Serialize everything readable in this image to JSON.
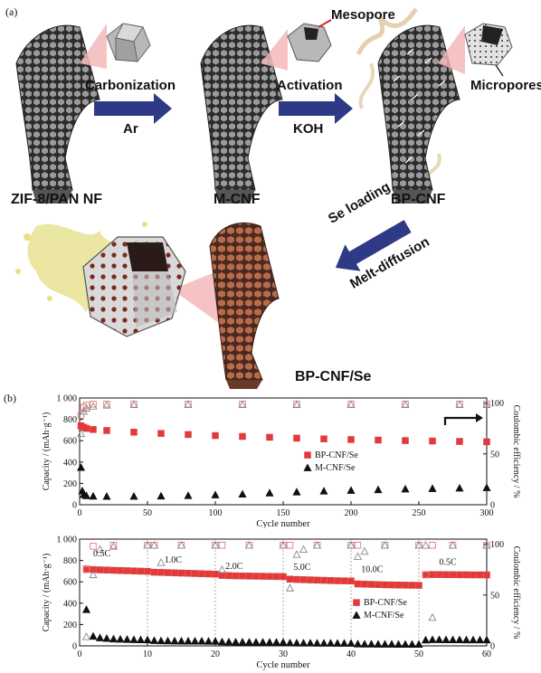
{
  "panel_a": {
    "tag": "(a)",
    "labels": {
      "mesopore": "Mesopore",
      "micropores": "Micropores",
      "stage1": "ZIF-8/PAN NF",
      "stage2": "M-CNF",
      "stage3": "BP-CNF",
      "stage4": "BP-CNF/Se"
    },
    "arrows": {
      "a1_top": "Carbonization",
      "a1_bottom": "Ar",
      "a2_top": "Activation",
      "a2_bottom": "KOH",
      "a3_top": "Se loading",
      "a3_bottom": "Melt-diffusion"
    },
    "colors": {
      "arrow": "#2f3a86",
      "fiber_dark": "#3a3a3a",
      "fiber_se": "#8a5038",
      "zoom_pink": "#f3b8b8",
      "se_liquid": "#e6e08a"
    }
  },
  "panel_b": {
    "tag": "(b)",
    "chart_data": [
      {
        "type": "scatter",
        "xlabel": "Cycle number",
        "ylabel_left": "Capacity / (mAh·g⁻¹)",
        "ylabel_right": "Coulombic efficiency / %",
        "xlim": [
          0,
          300
        ],
        "ylim_left": [
          0,
          1000
        ],
        "ylim_right": [
          0,
          105
        ],
        "xticks": [
          "0",
          "50",
          "100",
          "150",
          "200",
          "250",
          "300"
        ],
        "yticks_left": [
          "0",
          "200",
          "400",
          "600",
          "800",
          "1 000"
        ],
        "yticks_right": [
          "0",
          "50",
          "100"
        ],
        "legend": [
          "BP-CNF/Se",
          "M-CNF/Se"
        ],
        "legend_position": "right-middle",
        "series": [
          {
            "name": "BP-CNF/Se",
            "axis": "left",
            "marker": "square-filled",
            "color": "#e23a3a",
            "x": [
              1,
              3,
              5,
              10,
              20,
              40,
              60,
              80,
              100,
              120,
              140,
              160,
              180,
              200,
              220,
              240,
              260,
              280,
              300
            ],
            "y": [
              740,
              725,
              715,
              705,
              695,
              680,
              668,
              658,
              648,
              640,
              632,
              624,
              617,
              611,
              606,
              601,
              597,
              593,
              590
            ]
          },
          {
            "name": "M-CNF/Se",
            "axis": "left",
            "marker": "triangle-filled",
            "color": "#111111",
            "x": [
              1,
              2,
              3,
              5,
              10,
              20,
              40,
              60,
              80,
              100,
              120,
              140,
              160,
              180,
              200,
              220,
              240,
              260,
              280,
              300
            ],
            "y": [
              350,
              130,
              95,
              85,
              80,
              78,
              79,
              82,
              86,
              92,
              100,
              110,
              120,
              128,
              135,
              141,
              147,
              152,
              156,
              160
            ]
          },
          {
            "name": "BP-CNF/Se CE",
            "axis": "right",
            "marker": "square-open",
            "color": "#e27a7a",
            "x": [
              1,
              3,
              5,
              10,
              20,
              40,
              80,
              120,
              160,
              200,
              240,
              280,
              300
            ],
            "y": [
              88,
              96,
              98,
              99,
              99,
              99,
              99,
              99,
              99,
              99,
              99,
              99,
              99
            ]
          },
          {
            "name": "M-CNF/Se CE",
            "axis": "right",
            "marker": "triangle-open",
            "color": "#888888",
            "x": [
              1,
              3,
              5,
              10,
              20,
              40,
              80,
              120,
              160,
              200,
              240,
              280,
              300
            ],
            "y": [
              70,
              92,
              95,
              97,
              98,
              98.5,
              98.5,
              98.5,
              98.5,
              98.5,
              98.5,
              98.5,
              98.5
            ]
          }
        ]
      },
      {
        "type": "scatter",
        "xlabel": "Cycle number",
        "ylabel_left": "Capacity / (mAh·g⁻¹)",
        "ylabel_right": "Coulombic efficiency / %",
        "xlim": [
          0,
          60
        ],
        "ylim_left": [
          0,
          1000
        ],
        "ylim_right": [
          0,
          105
        ],
        "xticks": [
          "0",
          "10",
          "20",
          "30",
          "40",
          "50",
          "60"
        ],
        "yticks_left": [
          "0",
          "200",
          "400",
          "600",
          "800",
          "1 000"
        ],
        "yticks_right": [
          "0",
          "50",
          "100"
        ],
        "rate_labels": [
          "0.5C",
          "1.0C",
          "2.0C",
          "5.0C",
          "10.0C",
          "0.5C"
        ],
        "rate_dividers": [
          10,
          20,
          30,
          40,
          50
        ],
        "legend": [
          "BP-CNF/Se",
          "M-CNF/Se"
        ],
        "legend_position": "bottom-right",
        "series": [
          {
            "name": "BP-CNF/Se",
            "axis": "left",
            "marker": "square-filled",
            "color": "#e23a3a",
            "x": [
              1,
              2,
              3,
              4,
              5,
              6,
              7,
              8,
              9,
              10,
              11,
              12,
              13,
              14,
              15,
              16,
              17,
              18,
              19,
              20,
              21,
              22,
              23,
              24,
              25,
              26,
              27,
              28,
              29,
              30,
              31,
              32,
              33,
              34,
              35,
              36,
              37,
              38,
              39,
              40,
              41,
              42,
              43,
              44,
              45,
              46,
              47,
              48,
              49,
              50,
              51,
              52,
              53,
              54,
              55,
              56,
              57,
              58,
              59,
              60
            ],
            "y": [
              720,
              715,
              712,
              710,
              708,
              706,
              704,
              702,
              700,
              698,
              690,
              688,
              686,
              684,
              682,
              680,
              678,
              676,
              674,
              672,
              660,
              658,
              656,
              655,
              654,
              653,
              652,
              651,
              650,
              649,
              625,
              622,
              620,
              618,
              616,
              614,
              612,
              610,
              609,
              608,
              580,
              578,
              576,
              574,
              572,
              571,
              570,
              569,
              568,
              567,
              665,
              668,
              668,
              667,
              667,
              666,
              666,
              665,
              665,
              665
            ]
          },
          {
            "name": "M-CNF/Se",
            "axis": "left",
            "marker": "triangle-filled",
            "color": "#111111",
            "x": [
              1,
              2,
              3,
              4,
              5,
              6,
              7,
              8,
              9,
              10,
              11,
              12,
              13,
              14,
              15,
              16,
              17,
              18,
              19,
              20,
              21,
              22,
              23,
              24,
              25,
              26,
              27,
              28,
              29,
              30,
              31,
              32,
              33,
              34,
              35,
              36,
              37,
              38,
              39,
              40,
              41,
              42,
              43,
              44,
              45,
              46,
              47,
              48,
              49,
              50,
              51,
              52,
              53,
              54,
              55,
              56,
              57,
              58,
              59,
              60
            ],
            "y": [
              340,
              90,
              75,
              70,
              65,
              62,
              60,
              58,
              57,
              56,
              50,
              48,
              47,
              46,
              45,
              45,
              44,
              44,
              43,
              43,
              38,
              37,
              36,
              36,
              35,
              35,
              35,
              34,
              34,
              34,
              28,
              27,
              26,
              26,
              25,
              25,
              25,
              24,
              24,
              24,
              18,
              17,
              17,
              16,
              16,
              16,
              15,
              15,
              15,
              15,
              55,
              58,
              58,
              57,
              57,
              57,
              56,
              56,
              56,
              56
            ]
          },
          {
            "name": "BP-CNF/Se CE",
            "axis": "right",
            "marker": "square-open",
            "color": "#e27a7a",
            "x": [
              1,
              2,
              5,
              10,
              11,
              15,
              20,
              21,
              25,
              30,
              31,
              35,
              40,
              41,
              45,
              50,
              51,
              52,
              55,
              60
            ],
            "y": [
              75,
              98,
              99,
              99,
              99,
              99,
              99,
              99,
              99,
              99,
              99,
              99,
              99,
              99,
              99,
              99,
              70,
              99,
              99,
              99
            ]
          },
          {
            "name": "M-CNF/Se CE",
            "axis": "right",
            "marker": "triangle-open",
            "color": "#888888",
            "x": [
              1,
              2,
              3,
              5,
              10,
              11,
              12,
              15,
              20,
              21,
              25,
              30,
              31,
              32,
              33,
              35,
              40,
              41,
              42,
              45,
              50,
              51,
              52,
              55,
              60
            ],
            "y": [
              9,
              70,
              95,
              98,
              99,
              99,
              82,
              99,
              99,
              75,
              99,
              99,
              57,
              90,
              95,
              99,
              99,
              88,
              93,
              99,
              99,
              99,
              28,
              99,
              99
            ]
          }
        ]
      }
    ]
  }
}
